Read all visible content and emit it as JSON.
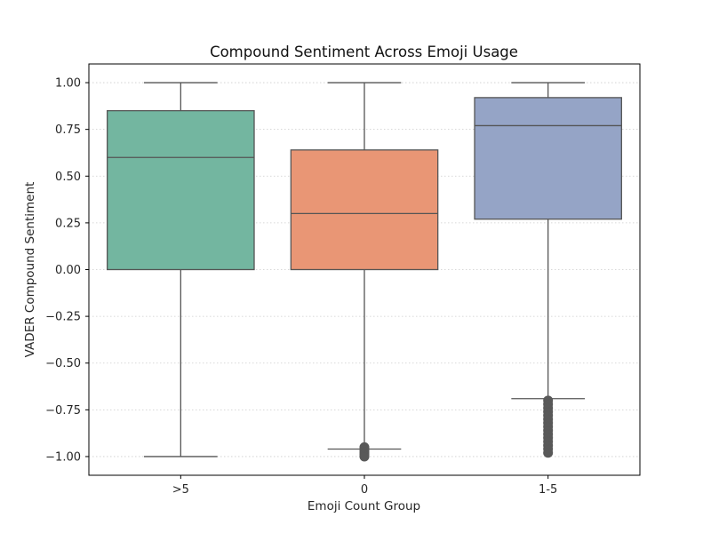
{
  "chart_data": {
    "type": "box",
    "title": "Compound Sentiment Across Emoji Usage",
    "xlabel": "Emoji Count Group",
    "ylabel": "VADER Compound Sentiment",
    "ylim": [
      -1.1,
      1.1
    ],
    "yticks": [
      -1.0,
      -0.75,
      -0.5,
      -0.25,
      0.0,
      0.25,
      0.5,
      0.75,
      1.0
    ],
    "ytick_labels": [
      "−1.00",
      "−0.75",
      "−0.50",
      "−0.25",
      "0.00",
      "0.25",
      "0.50",
      "0.75",
      "1.00"
    ],
    "grid": "horizontal dotted",
    "categories": [
      ">5",
      "0",
      "1-5"
    ],
    "boxes": [
      {
        "category": ">5",
        "whisker_low": -1.0,
        "q1": 0.0,
        "median": 0.6,
        "q3": 0.85,
        "whisker_high": 1.0,
        "outliers": [],
        "color": "#73b6a0"
      },
      {
        "category": "0",
        "whisker_low": -0.96,
        "q1": 0.0,
        "median": 0.3,
        "q3": 0.64,
        "whisker_high": 1.0,
        "outliers": [
          -0.95,
          -0.96,
          -0.97,
          -0.98,
          -0.99,
          -1.0
        ],
        "color": "#e99675"
      },
      {
        "category": "1-5",
        "whisker_low": -0.69,
        "q1": 0.27,
        "median": 0.77,
        "q3": 0.92,
        "whisker_high": 1.0,
        "outliers": [
          -0.7,
          -0.72,
          -0.74,
          -0.76,
          -0.78,
          -0.8,
          -0.82,
          -0.84,
          -0.86,
          -0.88,
          -0.9,
          -0.92,
          -0.94,
          -0.96,
          -0.98
        ],
        "color": "#95a4c6"
      }
    ],
    "line_color": "#555555"
  }
}
